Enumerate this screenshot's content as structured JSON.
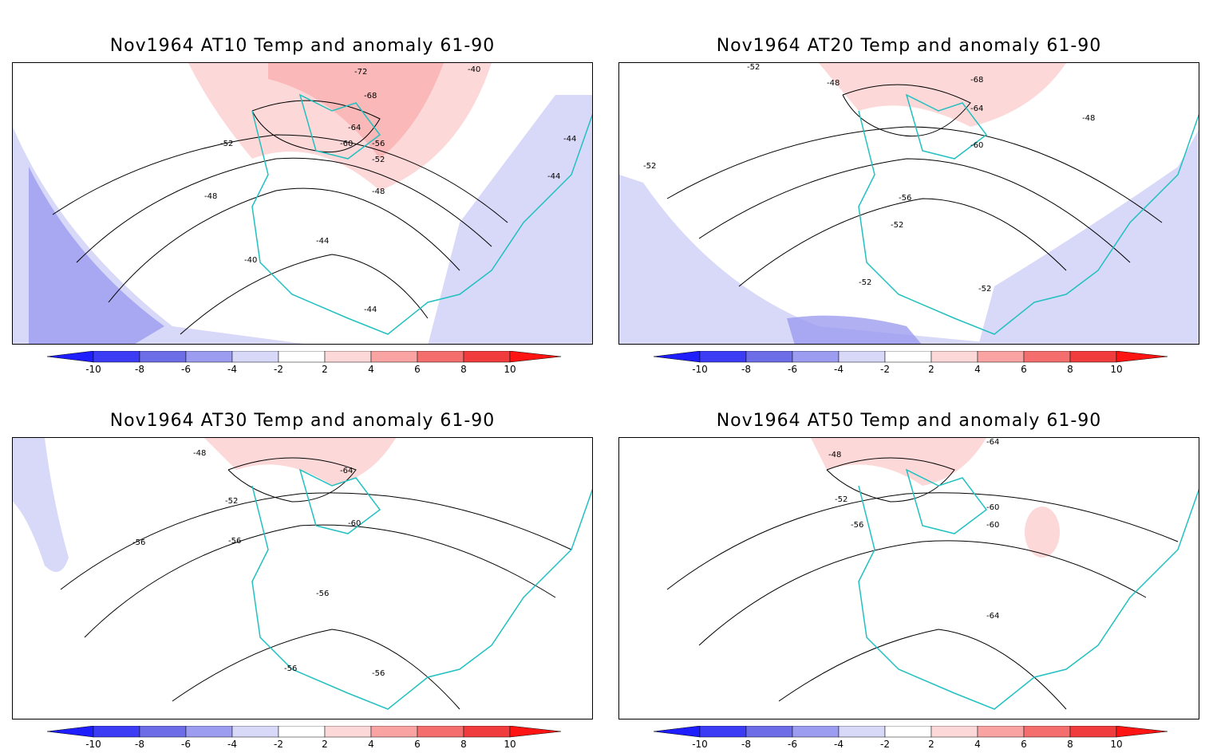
{
  "panels": [
    {
      "title": "Nov1964 AT10 Temp and anomaly 61-90",
      "labels": [
        "-72",
        "-68",
        "-64",
        "-60",
        "-56",
        "-52",
        "-52",
        "-48",
        "-48",
        "-44",
        "-44",
        "-40",
        "-40",
        "-44",
        "-44"
      ]
    },
    {
      "title": "Nov1964 AT20 Temp and anomaly 61-90",
      "labels": [
        "-52",
        "-48",
        "-68",
        "-64",
        "-60",
        "-56",
        "-52",
        "-52",
        "-52",
        "-48",
        "-52"
      ]
    },
    {
      "title": "Nov1964 AT30 Temp and anomaly 61-90",
      "labels": [
        "-48",
        "-64",
        "-52",
        "-56",
        "-56",
        "-60",
        "-56",
        "-56",
        "-56"
      ]
    },
    {
      "title": "Nov1964 AT50 Temp and anomaly 61-90",
      "labels": [
        "-64",
        "-48",
        "-52",
        "-56",
        "-60",
        "-60",
        "-64"
      ]
    }
  ],
  "colorbar": {
    "labels": [
      "-10",
      "-8",
      "-6",
      "-4",
      "-2",
      "2",
      "4",
      "6",
      "8",
      "10"
    ],
    "colors": [
      "#1e1eff",
      "#3c3cf5",
      "#6d6de8",
      "#9c9cf0",
      "#d8d8f8",
      "#ffffff",
      "#fdd8d8",
      "#f9a3a3",
      "#f46e6e",
      "#f03c3c",
      "#ff1414"
    ]
  }
}
